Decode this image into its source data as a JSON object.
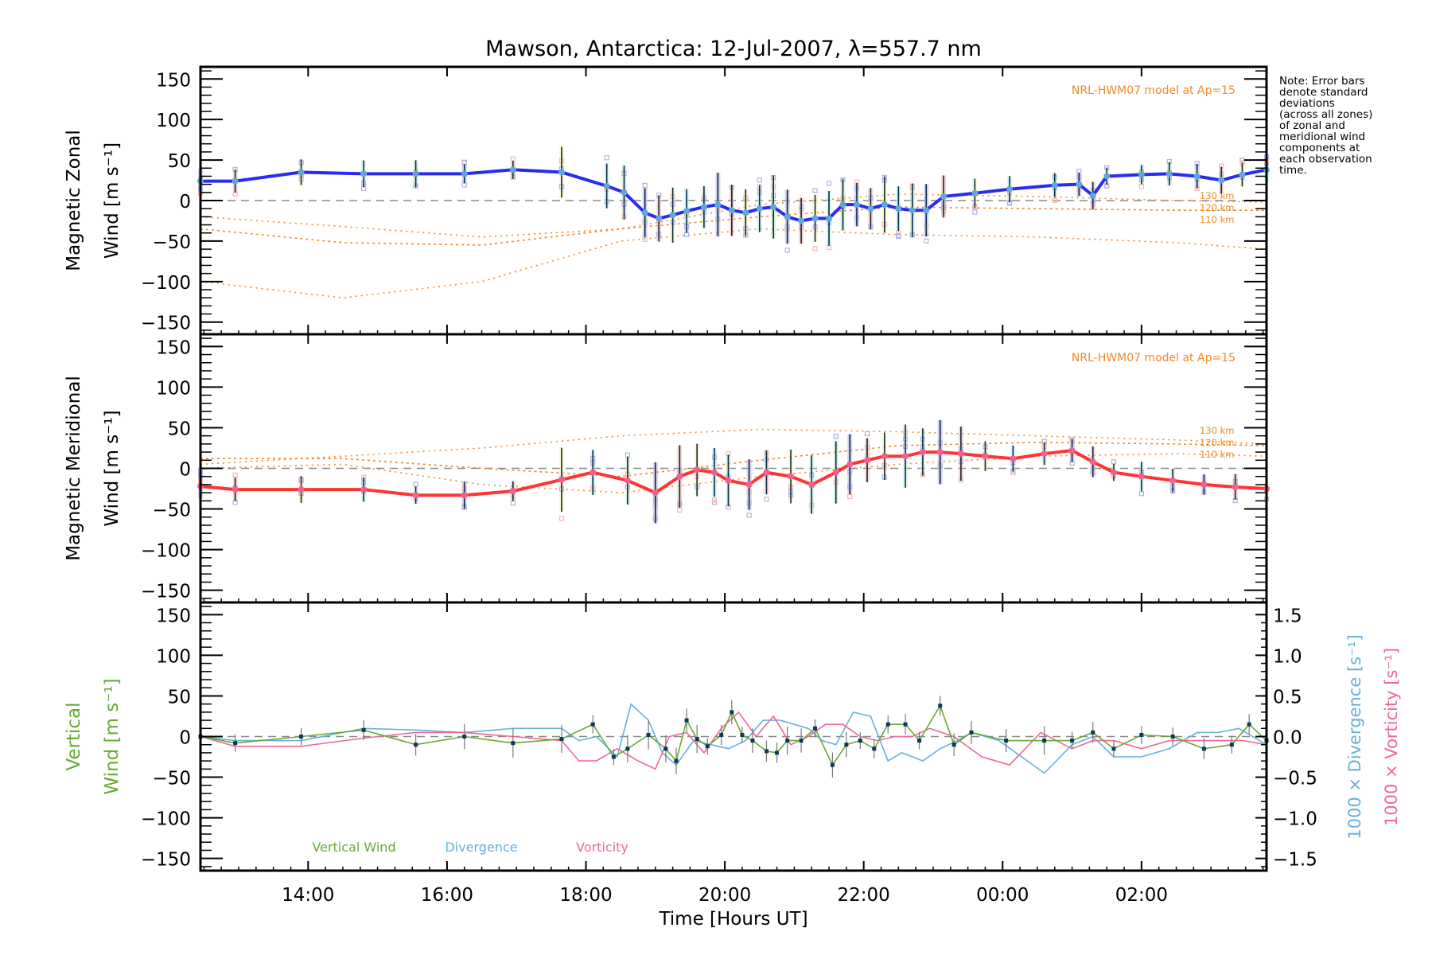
{
  "chart_data": [
    {
      "type": "line",
      "panel": "zonal",
      "title": "Mawson, Antarctica: 12-Jul-2007, λ=557.7 nm",
      "ylabel_line1": "Magnetic Zonal",
      "ylabel_line2": "Wind [m s⁻¹]",
      "ylim": [
        -165,
        165
      ],
      "yticks": [
        150,
        100,
        50,
        0,
        -50,
        -100,
        -150
      ],
      "model_label": "NRL-HWM07 model at Ap=15",
      "model_heights": [
        "130 km",
        "120 km",
        "110 km"
      ],
      "color": "#2b2bf0",
      "x": [
        12.45,
        12.95,
        13.9,
        14.8,
        15.55,
        16.25,
        16.95,
        17.65,
        18.3,
        18.55,
        18.85,
        19.05,
        19.25,
        19.45,
        19.7,
        19.9,
        20.1,
        20.3,
        20.5,
        20.7,
        20.9,
        21.1,
        21.3,
        21.5,
        21.7,
        21.9,
        22.1,
        22.3,
        22.5,
        22.7,
        22.9,
        23.15,
        23.6,
        24.1,
        24.75,
        25.1,
        25.3,
        25.5,
        26.0,
        26.4,
        26.8,
        27.15,
        27.45,
        27.8
      ],
      "values": [
        24,
        24,
        35,
        33,
        33,
        33,
        38,
        35,
        18,
        10,
        -15,
        -22,
        -18,
        -13,
        -8,
        -5,
        -12,
        -15,
        -10,
        -8,
        -20,
        -25,
        -22,
        -22,
        -5,
        -5,
        -10,
        -5,
        -10,
        -12,
        -12,
        5,
        9,
        14,
        19,
        20,
        6,
        30,
        32,
        33,
        30,
        25,
        32,
        38
      ]
    },
    {
      "type": "line",
      "panel": "meridional",
      "ylabel_line1": "Magnetic Meridional",
      "ylabel_line2": "Wind [m s⁻¹]",
      "ylim": [
        -165,
        165
      ],
      "yticks": [
        150,
        100,
        50,
        0,
        -50,
        -100,
        -150
      ],
      "model_label": "NRL-HWM07 model at Ap=15",
      "model_heights": [
        "130 km",
        "120 km",
        "110 km"
      ],
      "color": "#ff3333",
      "x": [
        12.45,
        12.95,
        13.9,
        14.8,
        15.55,
        16.25,
        16.95,
        17.65,
        18.1,
        18.6,
        19.0,
        19.35,
        19.6,
        19.85,
        20.05,
        20.35,
        20.6,
        20.95,
        21.25,
        21.6,
        21.8,
        22.05,
        22.3,
        22.6,
        22.85,
        23.1,
        23.4,
        23.75,
        24.15,
        24.6,
        25.0,
        25.3,
        25.6,
        26.0,
        26.45,
        26.9,
        27.35,
        27.8
      ],
      "values": [
        -22,
        -26,
        -26,
        -26,
        -33,
        -33,
        -28,
        -14,
        -5,
        -15,
        -30,
        -10,
        -2,
        -5,
        -15,
        -20,
        -5,
        -10,
        -20,
        -5,
        5,
        10,
        15,
        15,
        20,
        20,
        18,
        15,
        12,
        18,
        22,
        8,
        -5,
        -10,
        -15,
        -20,
        -23,
        -25
      ]
    },
    {
      "type": "line",
      "panel": "vertical",
      "ylabel_line1": "Vertical",
      "ylabel_line2": "Wind [m s⁻¹]",
      "right_ylabel_div": "1000 × Divergence [s⁻¹]",
      "right_ylabel_vort": "1000 × Vorticity [s⁻¹]",
      "ylim": [
        -165,
        165
      ],
      "yticks": [
        150,
        100,
        50,
        0,
        -50,
        -100,
        -150
      ],
      "y2lim": [
        -1.65,
        1.65
      ],
      "y2ticks": [
        "1.5",
        "1.0",
        "0.5",
        "0.0",
        "−0.5",
        "−1.0",
        "−1.5"
      ],
      "legend": [
        {
          "label": "Vertical Wind",
          "color": "#66aa33"
        },
        {
          "label": "Divergence",
          "color": "#66b0d8"
        },
        {
          "label": "Vorticity",
          "color": "#f0669a"
        }
      ],
      "series": [
        {
          "name": "Vertical Wind",
          "color": "#66aa33",
          "x": [
            12.45,
            12.95,
            13.9,
            14.8,
            15.55,
            16.25,
            16.95,
            17.65,
            18.1,
            18.4,
            18.6,
            18.9,
            19.15,
            19.3,
            19.45,
            19.6,
            19.75,
            19.95,
            20.1,
            20.25,
            20.4,
            20.6,
            20.75,
            20.9,
            21.1,
            21.3,
            21.55,
            21.75,
            21.95,
            22.15,
            22.35,
            22.6,
            22.8,
            23.1,
            23.3,
            23.55,
            24.05,
            24.6,
            25.0,
            25.3,
            25.6,
            26.0,
            26.45,
            26.9,
            27.3,
            27.55,
            27.8
          ],
          "values": [
            0,
            -8,
            0,
            8,
            -10,
            0,
            -8,
            -3,
            15,
            -25,
            -15,
            2,
            -15,
            -30,
            20,
            -3,
            -12,
            2,
            30,
            2,
            -5,
            -18,
            -20,
            -5,
            -5,
            10,
            -35,
            -10,
            -5,
            -15,
            15,
            15,
            -5,
            38,
            -10,
            5,
            -5,
            -5,
            -5,
            5,
            -15,
            2,
            0,
            -15,
            -10,
            15,
            -5
          ]
        },
        {
          "name": "Divergence",
          "color": "#66b0d8",
          "x": [
            12.45,
            12.95,
            13.9,
            14.8,
            15.55,
            16.25,
            16.95,
            17.65,
            17.9,
            18.15,
            18.45,
            18.65,
            18.9,
            19.1,
            19.3,
            19.55,
            19.8,
            20.05,
            20.3,
            20.55,
            20.8,
            21.0,
            21.2,
            21.4,
            21.6,
            21.85,
            22.1,
            22.35,
            22.55,
            22.85,
            23.1,
            23.35,
            23.55,
            23.95,
            24.6,
            25.0,
            25.3,
            25.6,
            26.0,
            26.4,
            26.8,
            27.1,
            27.4,
            27.8
          ],
          "values": [
            0.0,
            -0.05,
            -0.05,
            0.1,
            0.08,
            0.05,
            0.1,
            0.1,
            -0.05,
            0.0,
            -0.25,
            0.4,
            0.2,
            -0.2,
            -0.35,
            -0.05,
            -0.1,
            -0.15,
            -0.05,
            0.2,
            0.2,
            0.15,
            0.1,
            -0.05,
            -0.1,
            0.3,
            0.25,
            -0.3,
            -0.2,
            -0.3,
            -0.15,
            -0.05,
            0.05,
            -0.05,
            -0.45,
            -0.1,
            0.0,
            -0.25,
            -0.25,
            -0.15,
            0.05,
            0.05,
            0.1,
            -0.1
          ]
        },
        {
          "name": "Vorticity",
          "color": "#f0669a",
          "x": [
            12.45,
            12.95,
            13.9,
            14.8,
            15.55,
            16.25,
            16.95,
            17.65,
            17.9,
            18.15,
            18.45,
            18.75,
            19.0,
            19.2,
            19.45,
            19.7,
            19.95,
            20.2,
            20.45,
            20.7,
            20.95,
            21.2,
            21.45,
            21.7,
            21.95,
            22.2,
            22.45,
            22.7,
            22.95,
            23.3,
            23.7,
            24.1,
            24.55,
            25.0,
            25.3,
            25.6,
            26.0,
            26.4,
            26.8,
            27.15,
            27.45,
            27.8
          ],
          "values": [
            0.0,
            -0.12,
            -0.12,
            -0.02,
            0.05,
            0.05,
            0.0,
            -0.05,
            -0.3,
            -0.3,
            -0.15,
            -0.3,
            -0.4,
            0.0,
            0.05,
            -0.2,
            0.1,
            0.3,
            0.0,
            0.25,
            -0.1,
            0.0,
            0.15,
            0.15,
            0.0,
            -0.05,
            0.0,
            0.0,
            0.1,
            0.0,
            -0.25,
            -0.35,
            0.05,
            -0.15,
            -0.05,
            -0.05,
            -0.15,
            -0.05,
            -0.05,
            -0.05,
            -0.05,
            -0.1
          ]
        }
      ]
    }
  ],
  "xaxis": {
    "label": "Time [Hours UT]",
    "xlim": [
      12.45,
      27.8
    ],
    "ticks": [
      {
        "value": 14,
        "label": "14:00"
      },
      {
        "value": 16,
        "label": "16:00"
      },
      {
        "value": 18,
        "label": "18:00"
      },
      {
        "value": 20,
        "label": "20:00"
      },
      {
        "value": 22,
        "label": "22:00"
      },
      {
        "value": 24,
        "label": "00:00"
      },
      {
        "value": 26,
        "label": "02:00"
      }
    ]
  },
  "note": "Note: Error bars\ndenote standard\ndeviations\n(across all zones)\nof zonal and\nmeridional wind\ncomponents at\neach observation\ntime.",
  "model_curves": {
    "zonal": {
      "130 km": {
        "x": [
          12.45,
          14.5,
          16.5,
          18.5,
          20.5,
          22.5,
          24.5,
          26.5,
          27.8
        ],
        "values": [
          -20,
          -32,
          -45,
          -35,
          -5,
          8,
          5,
          0,
          -2
        ]
      },
      "120 km": {
        "x": [
          12.45,
          14.5,
          16.5,
          18.5,
          20.5,
          22.5,
          24.5,
          26.5,
          27.8
        ],
        "values": [
          -35,
          -52,
          -55,
          -35,
          -20,
          -8,
          -10,
          -12,
          -12
        ]
      },
      "110 km": {
        "x": [
          12.45,
          14.5,
          16.5,
          18.5,
          20.5,
          22.5,
          24.5,
          26.5,
          27.8
        ],
        "values": [
          -100,
          -120,
          -100,
          -50,
          -35,
          -42,
          -45,
          -52,
          -60
        ]
      }
    },
    "meridional": {
      "130 km": {
        "x": [
          12.45,
          14.5,
          16.5,
          18.5,
          20.5,
          22.5,
          24.5,
          26.5,
          27.8
        ],
        "values": [
          5,
          15,
          25,
          40,
          48,
          45,
          40,
          35,
          30
        ]
      },
      "120 km": {
        "x": [
          12.45,
          14.5,
          16.5,
          18.5,
          20.5,
          22.5,
          24.5,
          26.5,
          27.8
        ],
        "values": [
          12,
          12,
          0,
          -10,
          10,
          28,
          32,
          30,
          28
        ]
      },
      "110 km": {
        "x": [
          12.45,
          14.5,
          16.5,
          18.5,
          20.5,
          22.5,
          24.5,
          26.5,
          27.8
        ],
        "values": [
          0,
          5,
          -20,
          -30,
          -10,
          5,
          15,
          18,
          15
        ]
      }
    }
  }
}
